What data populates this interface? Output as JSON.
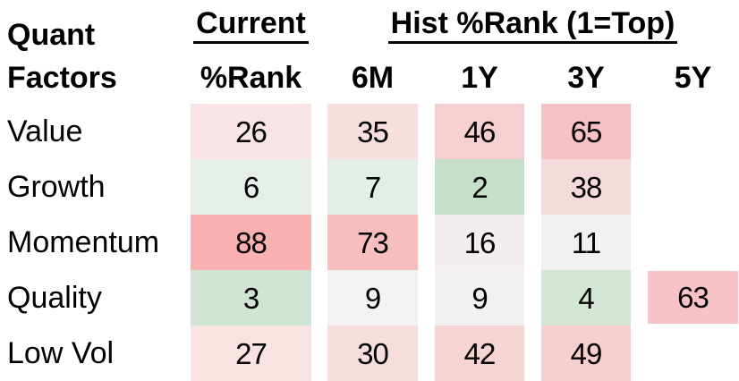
{
  "header": {
    "row_title_line1": "Quant",
    "row_title_line2": "Factors",
    "current_group_title": "Current",
    "current_sub": "%Rank",
    "hist_group_title": "Hist %Rank (1=Top)",
    "hist_subs": {
      "m6": "6M",
      "y1": "1Y",
      "y3": "3Y",
      "y5": "5Y"
    }
  },
  "rows": [
    {
      "label": "Value",
      "cells": [
        {
          "value": "26",
          "bg": "#f8e4e4"
        },
        {
          "value": "35",
          "bg": "#f8dede"
        },
        {
          "value": "46",
          "bg": "#f6cfd0"
        },
        {
          "value": "65",
          "bg": "#f7c2c4"
        },
        {
          "value": "",
          "bg": ""
        }
      ]
    },
    {
      "label": "Growth",
      "cells": [
        {
          "value": "6",
          "bg": "#e6efe7"
        },
        {
          "value": "7",
          "bg": "#e3eee4"
        },
        {
          "value": "2",
          "bg": "#c5dfc9"
        },
        {
          "value": "38",
          "bg": "#f5dadb"
        },
        {
          "value": "",
          "bg": ""
        }
      ]
    },
    {
      "label": "Momentum",
      "cells": [
        {
          "value": "88",
          "bg": "#f8b0b0"
        },
        {
          "value": "73",
          "bg": "#f7bebe"
        },
        {
          "value": "16",
          "bg": "#f4eded"
        },
        {
          "value": "11",
          "bg": "#f1f1f1"
        },
        {
          "value": "",
          "bg": ""
        }
      ]
    },
    {
      "label": "Quality",
      "cells": [
        {
          "value": "3",
          "bg": "#cfe4d2"
        },
        {
          "value": "9",
          "bg": "#f2f2f2"
        },
        {
          "value": "9",
          "bg": "#f2f1f1"
        },
        {
          "value": "4",
          "bg": "#d3e6d5"
        },
        {
          "value": "63",
          "bg": "#f8c3c6"
        }
      ]
    },
    {
      "label": "Low Vol",
      "cells": [
        {
          "value": "27",
          "bg": "#f8e2e2"
        },
        {
          "value": "30",
          "bg": "#f6dedd"
        },
        {
          "value": "42",
          "bg": "#f6d4d4"
        },
        {
          "value": "49",
          "bg": "#f6cecd"
        }
      ]
    }
  ],
  "chart_data": {
    "type": "heatmap",
    "title": "Quant Factors %Rank heatmap",
    "row_header": "Quant Factors",
    "column_groups": [
      {
        "label": "Current",
        "columns": [
          "%Rank"
        ]
      },
      {
        "label": "Hist %Rank (1=Top)",
        "columns": [
          "6M",
          "1Y",
          "3Y",
          "5Y"
        ]
      }
    ],
    "columns": [
      "Current %Rank",
      "6M",
      "1Y",
      "3Y",
      "5Y"
    ],
    "rows": [
      "Value",
      "Growth",
      "Momentum",
      "Quality",
      "Low Vol"
    ],
    "values": [
      [
        26,
        35,
        46,
        65,
        null
      ],
      [
        6,
        7,
        2,
        38,
        null
      ],
      [
        88,
        73,
        16,
        11,
        null
      ],
      [
        3,
        9,
        9,
        4,
        63
      ],
      [
        27,
        30,
        42,
        49,
        null
      ]
    ],
    "scale_note": "1=Top; low values shaded green, mid ~10-15 near white/grey, high values shaded red/pink",
    "color_low": "#c5dfc9",
    "color_mid": "#f1f1f1",
    "color_high": "#f8b0b0"
  }
}
